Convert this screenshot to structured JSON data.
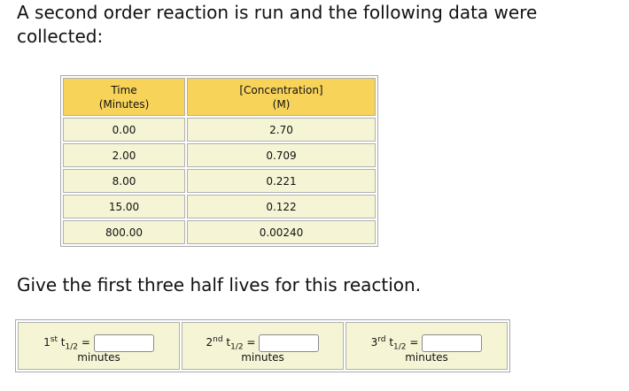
{
  "intro": "A second order reaction is run and the following data were collected:",
  "table": {
    "headers": [
      {
        "line1": "Time",
        "line2": "(Minutes)"
      },
      {
        "line1": "[Concentration]",
        "line2": "(M)"
      }
    ],
    "rows": [
      {
        "time": "0.00",
        "conc": "2.70"
      },
      {
        "time": "2.00",
        "conc": "0.709"
      },
      {
        "time": "8.00",
        "conc": "0.221"
      },
      {
        "time": "15.00",
        "conc": "0.122"
      },
      {
        "time": "800.00",
        "conc": "0.00240"
      }
    ]
  },
  "question": "Give the first three half lives for this reaction.",
  "answers": [
    {
      "ordinal": "1",
      "suffix": "st",
      "symbol": "t",
      "sub": "1/2",
      "eq": "=",
      "value": "",
      "unit": "minutes"
    },
    {
      "ordinal": "2",
      "suffix": "nd",
      "symbol": "t",
      "sub": "1/2",
      "eq": "=",
      "value": "",
      "unit": "minutes"
    },
    {
      "ordinal": "3",
      "suffix": "rd",
      "symbol": "t",
      "sub": "1/2",
      "eq": "=",
      "value": "",
      "unit": "minutes"
    }
  ]
}
